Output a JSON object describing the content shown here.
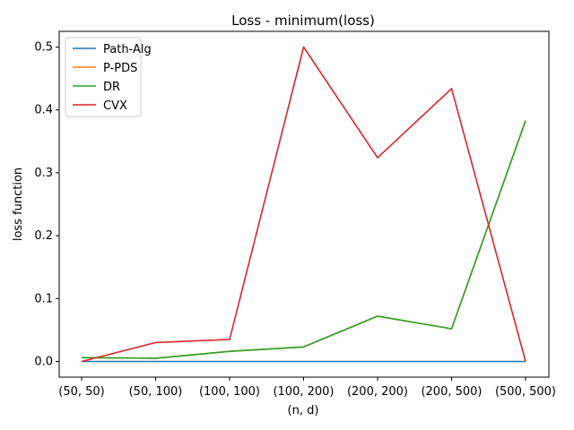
{
  "chart_data": {
    "type": "line",
    "title": "Loss - minimum(loss)",
    "xlabel": "(n, d)",
    "ylabel": "loss function",
    "categories": [
      "(50, 50)",
      "(50, 100)",
      "(100, 100)",
      "(100, 200)",
      "(200, 200)",
      "(200, 500)",
      "(500, 500)"
    ],
    "ylim": [
      -0.025,
      0.525
    ],
    "yticks": [
      "0.0",
      "0.1",
      "0.2",
      "0.3",
      "0.4",
      "0.5"
    ],
    "grid": false,
    "legend_position": "top-left",
    "series": [
      {
        "name": "Path-Alg",
        "color": "#1f77b4",
        "values": [
          0.0,
          0.0,
          0.0,
          0.0,
          0.0,
          0.0,
          0.0
        ]
      },
      {
        "name": "P-PDS",
        "color": "#ff7f0e",
        "values": [
          0.006,
          0.005,
          0.016,
          0.023,
          0.072,
          0.052,
          0.383
        ]
      },
      {
        "name": "DR",
        "color": "#2ca02c",
        "values": [
          0.006,
          0.005,
          0.016,
          0.023,
          0.072,
          0.052,
          0.383
        ]
      },
      {
        "name": "CVX",
        "color": "#d62728",
        "values": [
          0.0,
          0.03,
          0.035,
          0.5,
          0.324,
          0.434,
          0.0
        ]
      }
    ]
  }
}
